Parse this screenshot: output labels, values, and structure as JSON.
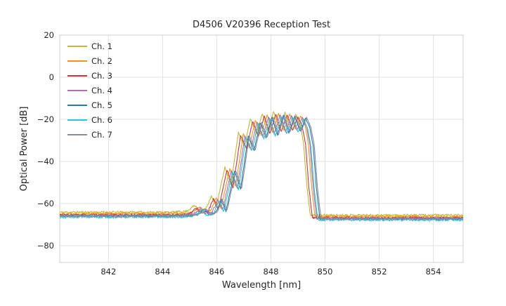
{
  "chart_data": {
    "type": "line",
    "title": "D4506 V20396 Reception Test",
    "xlabel": "Wavelength [nm]",
    "ylabel": "Optical Power [dB]",
    "xlim": [
      840.2,
      855.1
    ],
    "ylim": [
      -88,
      20
    ],
    "xticks": [
      842,
      844,
      846,
      848,
      850,
      852,
      854
    ],
    "yticks": [
      20,
      0,
      -20,
      -40,
      -60,
      -80
    ],
    "ytick_labels": [
      "20",
      "0",
      "−20",
      "−40",
      "−60",
      "−80"
    ],
    "grid": true,
    "legend_position": "upper-left",
    "series": [
      {
        "name": "Ch. 1",
        "color": "#c2ba2e",
        "offset_nm": -0.2,
        "offset_db": 1.3,
        "seed": 11
      },
      {
        "name": "Ch. 2",
        "color": "#f8921d",
        "offset_nm": -0.02,
        "offset_db": 0.6,
        "seed": 22
      },
      {
        "name": "Ch. 3",
        "color": "#d6323a",
        "offset_nm": -0.12,
        "offset_db": 0.0,
        "seed": 33
      },
      {
        "name": "Ch. 4",
        "color": "#a873ad",
        "offset_nm": 0.04,
        "offset_db": -0.2,
        "seed": 44
      },
      {
        "name": "Ch. 5",
        "color": "#2878b5",
        "offset_nm": 0.16,
        "offset_db": -0.6,
        "seed": 55
      },
      {
        "name": "Ch. 6",
        "color": "#2cc2d8",
        "offset_nm": 0.08,
        "offset_db": -1.0,
        "seed": 66
      },
      {
        "name": "Ch. 7",
        "color": "#878d95",
        "offset_nm": 0.2,
        "offset_db": -0.4,
        "seed": 77
      }
    ],
    "envelope_nm_db": [
      [
        840.2,
        -65.4
      ],
      [
        844.6,
        -65.4
      ],
      [
        845.1,
        -64.9
      ],
      [
        845.38,
        -62.2
      ],
      [
        845.55,
        -64.6
      ],
      [
        845.8,
        -63.8
      ],
      [
        846.0,
        -57.8
      ],
      [
        846.18,
        -62.8
      ],
      [
        846.5,
        -44.0
      ],
      [
        846.72,
        -52.5
      ],
      [
        847.0,
        -27.5
      ],
      [
        847.22,
        -34.0
      ],
      [
        847.45,
        -20.8
      ],
      [
        847.66,
        -28.2
      ],
      [
        847.88,
        -18.6
      ],
      [
        848.08,
        -26.8
      ],
      [
        848.3,
        -17.6
      ],
      [
        848.5,
        -25.8
      ],
      [
        848.72,
        -18.0
      ],
      [
        848.92,
        -25.2
      ],
      [
        849.12,
        -18.8
      ],
      [
        849.28,
        -23.5
      ],
      [
        849.4,
        -32.0
      ],
      [
        849.52,
        -52.0
      ],
      [
        849.65,
        -66.8
      ],
      [
        850.2,
        -66.8
      ],
      [
        855.1,
        -66.8
      ]
    ],
    "noise": {
      "floor_amp_db": 0.5,
      "band_amp_db": 0.25
    },
    "sample_step_nm": 0.02,
    "grid_color": "#e1e1e1",
    "spine_color": "#cfcfcf"
  }
}
